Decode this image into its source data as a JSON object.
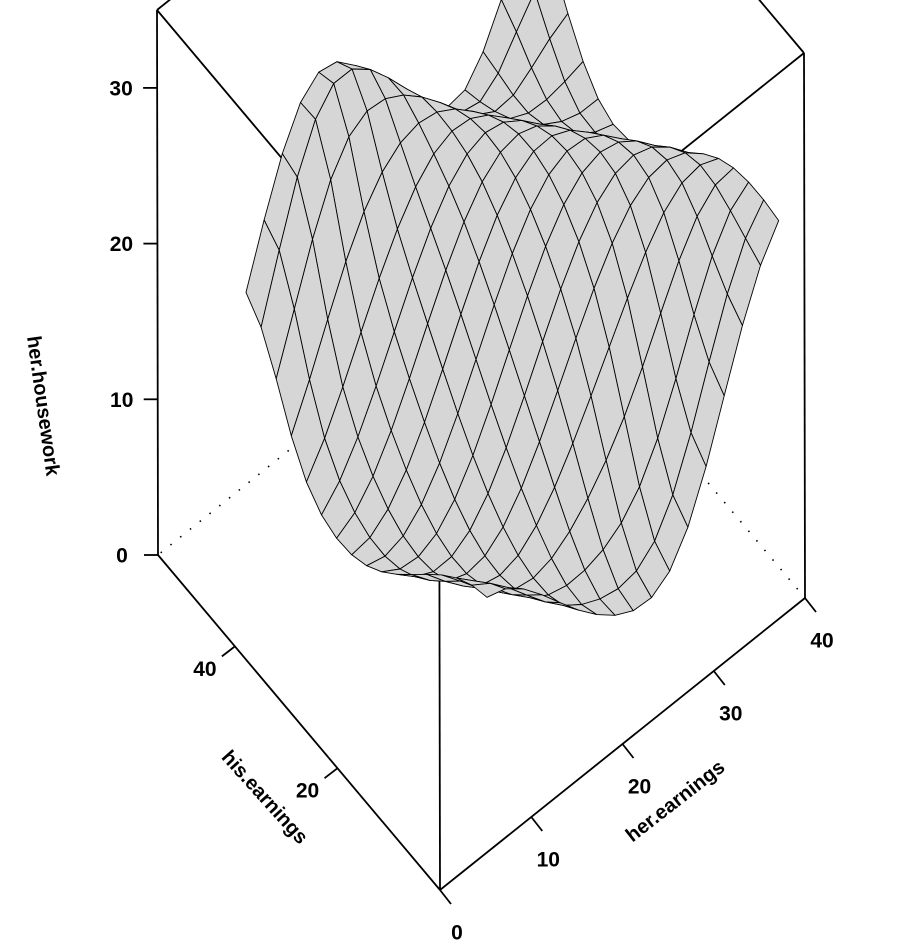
{
  "chart_data": {
    "type": "surface3d",
    "title": "",
    "axes": {
      "x": {
        "label": "her.earnings",
        "ticks": [
          0,
          10,
          20,
          30,
          40
        ],
        "tick_labels": [
          "0",
          "10",
          "20",
          "30",
          "40"
        ],
        "range": [
          0,
          40
        ]
      },
      "y": {
        "label": "his.earnings",
        "ticks": [
          20,
          40
        ],
        "tick_labels": [
          "20",
          "40"
        ],
        "range": [
          0,
          55
        ]
      },
      "z": {
        "label": "her.housework",
        "ticks": [
          0,
          10,
          20,
          30
        ],
        "tick_labels": [
          "0",
          "10",
          "20",
          "30"
        ],
        "range": [
          0,
          35
        ]
      }
    },
    "surface": {
      "x_range": [
        8,
        40
      ],
      "y_range": [
        5,
        52
      ],
      "nx": 17,
      "ny": 17,
      "samples": [
        {
          "her_earnings": 40,
          "his_earnings": 50,
          "her_housework": 25
        },
        {
          "her_earnings": 40,
          "his_earnings": 10,
          "her_housework": 5
        },
        {
          "her_earnings": 12,
          "his_earnings": 48,
          "her_housework": 10
        },
        {
          "her_earnings": 8,
          "his_earnings": 8,
          "her_housework": 14
        },
        {
          "her_earnings": 36,
          "his_earnings": 28,
          "her_housework": 19
        }
      ],
      "fill_color": "#d6d6d6",
      "mesh_color": "#000000"
    },
    "grid": false,
    "legend": "none"
  }
}
